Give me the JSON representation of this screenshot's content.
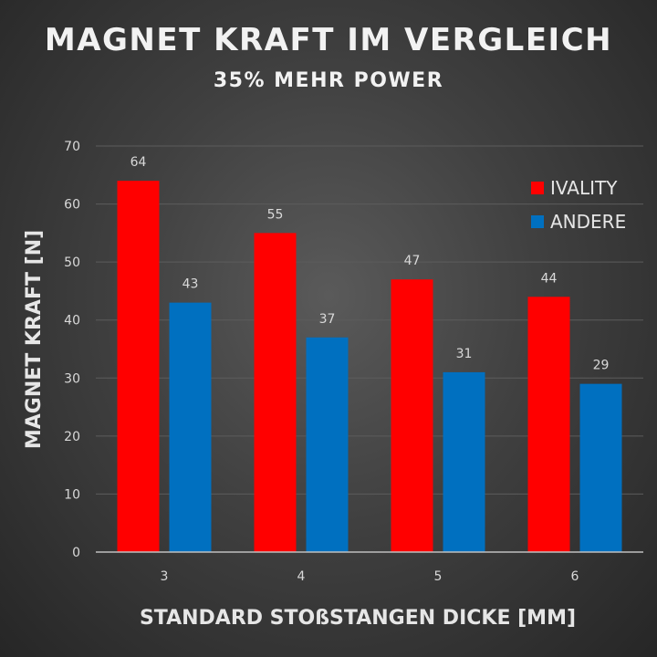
{
  "chart_data": {
    "type": "bar",
    "title": "MAGNET KRAFT IM VERGLEICH",
    "subtitle": "35% MEHR POWER",
    "xlabel": "STANDARD STOßSTANGEN DICKE [MM]",
    "ylabel": "MAGNET KRAFT [N]",
    "categories": [
      "3",
      "4",
      "5",
      "6"
    ],
    "series": [
      {
        "name": "IVALITY",
        "values": [
          64,
          55,
          47,
          44
        ],
        "color": "#ff0000"
      },
      {
        "name": "ANDERE",
        "values": [
          43,
          37,
          31,
          29
        ],
        "color": "#0070c0"
      }
    ],
    "ylim": [
      0,
      70
    ],
    "yticks": [
      0,
      10,
      20,
      30,
      40,
      50,
      60,
      70
    ],
    "grid": true,
    "legend": "top-right",
    "data_labels": true
  }
}
